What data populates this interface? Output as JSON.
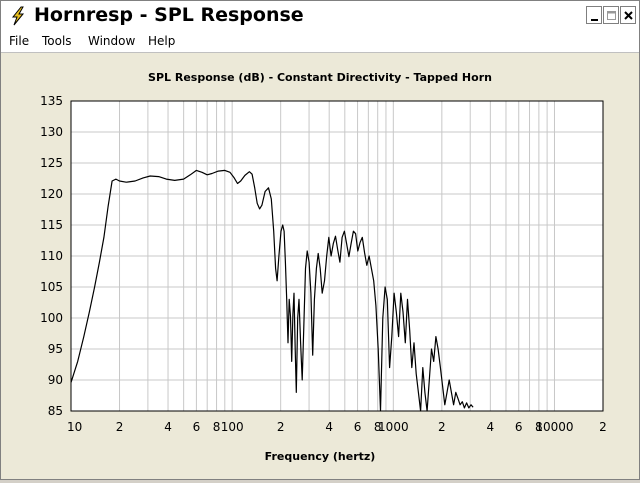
{
  "window": {
    "title": "Hornresp - SPL Response",
    "controls": {
      "minimize": "minimize",
      "maximize": "maximize",
      "close": "close"
    }
  },
  "menu": {
    "items": [
      {
        "label": "File"
      },
      {
        "label": "Tools"
      },
      {
        "label": "Window"
      },
      {
        "label": "Help"
      }
    ]
  },
  "colors": {
    "plot_bg": "#ffffff",
    "grid": "#c8c8c8",
    "curve": "#000000",
    "frame": "#000000"
  },
  "chart_data": {
    "type": "line",
    "title": "SPL Response (dB) - Constant Directivity - Tapped Horn",
    "xlabel": "Frequency (hertz)",
    "ylabel": "",
    "xscale": "log",
    "xlim": [
      10,
      20000
    ],
    "ylim": [
      85,
      135
    ],
    "yticks": [
      85,
      90,
      95,
      100,
      105,
      110,
      115,
      120,
      125,
      130,
      135
    ],
    "xtick_labels": [
      {
        "x": 10,
        "label": "10"
      },
      {
        "x": 20,
        "label": "2"
      },
      {
        "x": 40,
        "label": "4"
      },
      {
        "x": 60,
        "label": "6"
      },
      {
        "x": 80,
        "label": "8"
      },
      {
        "x": 100,
        "label": "100"
      },
      {
        "x": 200,
        "label": "2"
      },
      {
        "x": 400,
        "label": "4"
      },
      {
        "x": 600,
        "label": "6"
      },
      {
        "x": 800,
        "label": "8"
      },
      {
        "x": 1000,
        "label": "1000"
      },
      {
        "x": 2000,
        "label": "2"
      },
      {
        "x": 4000,
        "label": "4"
      },
      {
        "x": 6000,
        "label": "6"
      },
      {
        "x": 8000,
        "label": "8"
      },
      {
        "x": 10000,
        "label": "10000"
      },
      {
        "x": 20000,
        "label": "2"
      }
    ],
    "grid": true,
    "series": [
      {
        "points": [
          [
            10,
            89.6
          ],
          [
            11,
            93
          ],
          [
            12,
            97
          ],
          [
            13,
            101
          ],
          [
            14,
            105
          ],
          [
            15,
            109
          ],
          [
            16,
            113
          ],
          [
            17,
            118
          ],
          [
            18,
            122.1
          ],
          [
            19,
            122.4
          ],
          [
            20,
            122.1
          ],
          [
            22,
            121.9
          ],
          [
            25,
            122.1
          ],
          [
            28,
            122.6
          ],
          [
            31,
            122.9
          ],
          [
            35,
            122.8
          ],
          [
            39,
            122.4
          ],
          [
            44,
            122.2
          ],
          [
            50,
            122.4
          ],
          [
            55,
            123.1
          ],
          [
            60,
            123.8
          ],
          [
            65,
            123.5
          ],
          [
            70,
            123.1
          ],
          [
            75,
            123.3
          ],
          [
            82,
            123.7
          ],
          [
            90,
            123.8
          ],
          [
            97,
            123.5
          ],
          [
            103,
            122.6
          ],
          [
            108,
            121.7
          ],
          [
            113,
            122.1
          ],
          [
            120,
            123
          ],
          [
            128,
            123.6
          ],
          [
            133,
            123.2
          ],
          [
            138,
            121
          ],
          [
            143,
            118.5
          ],
          [
            148,
            117.6
          ],
          [
            153,
            118.2
          ],
          [
            160,
            120.4
          ],
          [
            168,
            121
          ],
          [
            175,
            119.2
          ],
          [
            181,
            114
          ],
          [
            186,
            108
          ],
          [
            190,
            106
          ],
          [
            195,
            110
          ],
          [
            201,
            114
          ],
          [
            206,
            115
          ],
          [
            210,
            114
          ],
          [
            214,
            109
          ],
          [
            218,
            103
          ],
          [
            222,
            96
          ],
          [
            226,
            103
          ],
          [
            230,
            100.2
          ],
          [
            234,
            93
          ],
          [
            238,
            100.6
          ],
          [
            242,
            104
          ],
          [
            246,
            95
          ],
          [
            250,
            88
          ],
          [
            255,
            100
          ],
          [
            260,
            103
          ],
          [
            266,
            96
          ],
          [
            272,
            90
          ],
          [
            278,
            98
          ],
          [
            285,
            108
          ],
          [
            292,
            110.8
          ],
          [
            300,
            109
          ],
          [
            308,
            104
          ],
          [
            316,
            94
          ],
          [
            324,
            103
          ],
          [
            333,
            108
          ],
          [
            342,
            110.4
          ],
          [
            352,
            108
          ],
          [
            362,
            104
          ],
          [
            374,
            106
          ],
          [
            386,
            110
          ],
          [
            398,
            113
          ],
          [
            411,
            110
          ],
          [
            424,
            112
          ],
          [
            438,
            113.2
          ],
          [
            452,
            111
          ],
          [
            466,
            109
          ],
          [
            481,
            113
          ],
          [
            497,
            114
          ],
          [
            513,
            112
          ],
          [
            530,
            109.9
          ],
          [
            547,
            112
          ],
          [
            565,
            114
          ],
          [
            583,
            113.6
          ],
          [
            602,
            110.8
          ],
          [
            622,
            112.2
          ],
          [
            642,
            113
          ],
          [
            663,
            110.5
          ],
          [
            685,
            108.5
          ],
          [
            707,
            110
          ],
          [
            731,
            108
          ],
          [
            755,
            106
          ],
          [
            780,
            102
          ],
          [
            806,
            95
          ],
          [
            833,
            85
          ],
          [
            861,
            100
          ],
          [
            889,
            105
          ],
          [
            918,
            103
          ],
          [
            948,
            92
          ],
          [
            979,
            97
          ],
          [
            1011,
            104
          ],
          [
            1044,
            101
          ],
          [
            1078,
            97
          ],
          [
            1113,
            104
          ],
          [
            1149,
            101
          ],
          [
            1186,
            96
          ],
          [
            1224,
            103
          ],
          [
            1263,
            98
          ],
          [
            1303,
            92
          ],
          [
            1344,
            96
          ],
          [
            1387,
            91
          ],
          [
            1431,
            88
          ],
          [
            1476,
            85
          ],
          [
            1523,
            92
          ],
          [
            1571,
            88
          ],
          [
            1621,
            85
          ],
          [
            1673,
            90
          ],
          [
            1726,
            95
          ],
          [
            1781,
            93
          ],
          [
            1838,
            97
          ],
          [
            1897,
            95
          ],
          [
            1958,
            92
          ],
          [
            2021,
            89
          ],
          [
            2086,
            86
          ],
          [
            2153,
            88
          ],
          [
            2222,
            90
          ],
          [
            2293,
            88
          ],
          [
            2366,
            86
          ],
          [
            2441,
            88
          ],
          [
            2518,
            87
          ],
          [
            2597,
            86
          ],
          [
            2678,
            86.5
          ],
          [
            2762,
            85.5
          ],
          [
            2849,
            86.3
          ],
          [
            2939,
            85.5
          ],
          [
            3032,
            86
          ],
          [
            3128,
            85.6
          ]
        ]
      }
    ]
  }
}
